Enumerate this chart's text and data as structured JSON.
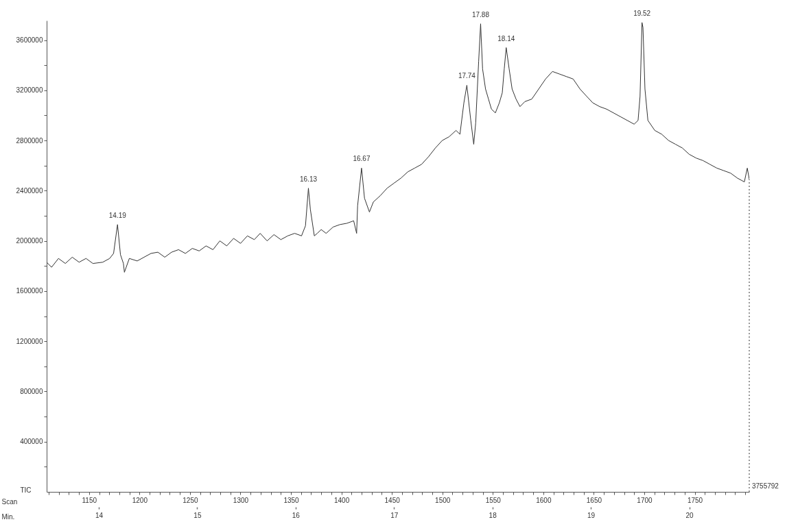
{
  "chart_data": {
    "type": "line",
    "xlabel": "Min.",
    "ylabel": "TIC",
    "x2label": "Scan",
    "xlim": [
      13.47,
      20.61
    ],
    "ylim": [
      0,
      3755792
    ],
    "x2lim": [
      1108,
      1804
    ],
    "xticks": [
      14,
      15,
      16,
      17,
      18,
      19,
      20
    ],
    "x2ticks": [
      {
        "value": 1110,
        "label": null
      },
      {
        "value": 1120,
        "label": null
      },
      {
        "value": 1130,
        "label": null
      },
      {
        "value": 1140,
        "label": null
      },
      1150,
      {
        "value": 1160,
        "label": null
      },
      {
        "value": 1170,
        "label": null
      },
      {
        "value": 1180,
        "label": null
      },
      {
        "value": 1190,
        "label": null
      },
      1200,
      {
        "value": 1210,
        "label": null
      },
      {
        "value": 1220,
        "label": null
      },
      {
        "value": 1230,
        "label": null
      },
      {
        "value": 1240,
        "label": null
      },
      1250,
      {
        "value": 1260,
        "label": null
      },
      {
        "value": 1270,
        "label": null
      },
      {
        "value": 1280,
        "label": null
      },
      {
        "value": 1290,
        "label": null
      },
      1300,
      {
        "value": 1310,
        "label": null
      },
      {
        "value": 1320,
        "label": null
      },
      {
        "value": 1330,
        "label": null
      },
      {
        "value": 1340,
        "label": null
      },
      1350,
      {
        "value": 1360,
        "label": null
      },
      {
        "value": 1370,
        "label": null
      },
      {
        "value": 1380,
        "label": null
      },
      {
        "value": 1390,
        "label": null
      },
      1400,
      {
        "value": 1410,
        "label": null
      },
      {
        "value": 1420,
        "label": null
      },
      {
        "value": 1430,
        "label": null
      },
      {
        "value": 1440,
        "label": null
      },
      1450,
      {
        "value": 1460,
        "label": null
      },
      {
        "value": 1470,
        "label": null
      },
      {
        "value": 1480,
        "label": null
      },
      {
        "value": 1490,
        "label": null
      },
      1500,
      {
        "value": 1510,
        "label": null
      },
      {
        "value": 1520,
        "label": null
      },
      {
        "value": 1530,
        "label": null
      },
      {
        "value": 1540,
        "label": null
      },
      1550,
      {
        "value": 1560,
        "label": null
      },
      {
        "value": 1570,
        "label": null
      },
      {
        "value": 1580,
        "label": null
      },
      {
        "value": 1590,
        "label": null
      },
      1600,
      {
        "value": 1610,
        "label": null
      },
      {
        "value": 1620,
        "label": null
      },
      {
        "value": 1630,
        "label": null
      },
      {
        "value": 1640,
        "label": null
      },
      1650,
      {
        "value": 1660,
        "label": null
      },
      {
        "value": 1670,
        "label": null
      },
      {
        "value": 1680,
        "label": null
      },
      {
        "value": 1690,
        "label": null
      },
      1700,
      {
        "value": 1710,
        "label": null
      },
      {
        "value": 1720,
        "label": null
      },
      {
        "value": 1730,
        "label": null
      },
      {
        "value": 1740,
        "label": null
      },
      1750,
      {
        "value": 1760,
        "label": null
      },
      {
        "value": 1770,
        "label": null
      },
      {
        "value": 1780,
        "label": null
      },
      {
        "value": 1790,
        "label": null
      },
      {
        "value": 1800,
        "label": null
      }
    ],
    "yticks": [
      {
        "value": 200000,
        "label": null
      },
      400000,
      {
        "value": 600000,
        "label": null
      },
      800000,
      {
        "value": 1000000,
        "label": null
      },
      1200000,
      {
        "value": 1400000,
        "label": null
      },
      1600000,
      {
        "value": 1800000,
        "label": null
      },
      2000000,
      {
        "value": 2200000,
        "label": null
      },
      2400000,
      {
        "value": 2600000,
        "label": null
      },
      2800000,
      {
        "value": 3000000,
        "label": null
      },
      3200000,
      {
        "value": 3400000,
        "label": null
      },
      3600000
    ],
    "grid": false,
    "marker": "none",
    "line_style": "solid",
    "series": [
      {
        "color": "#333333",
        "x": [
          13.47,
          13.52,
          13.59,
          13.66,
          13.73,
          13.8,
          13.87,
          13.94,
          14.04,
          14.11,
          14.15,
          14.19,
          14.22,
          14.25,
          14.26,
          14.31,
          14.39,
          14.46,
          14.53,
          14.6,
          14.67,
          14.74,
          14.81,
          14.88,
          14.95,
          15.02,
          15.09,
          15.16,
          15.23,
          15.3,
          15.37,
          15.44,
          15.51,
          15.58,
          15.64,
          15.71,
          15.78,
          15.85,
          15.92,
          15.99,
          16.06,
          16.1,
          16.13,
          16.15,
          16.19,
          16.22,
          16.26,
          16.31,
          16.38,
          16.45,
          16.52,
          16.59,
          16.62,
          16.63,
          16.67,
          16.7,
          16.75,
          16.79,
          16.86,
          16.93,
          17.0,
          17.07,
          17.14,
          17.21,
          17.28,
          17.35,
          17.42,
          17.49,
          17.56,
          17.63,
          17.67,
          17.71,
          17.74,
          17.78,
          17.81,
          17.83,
          17.86,
          17.88,
          17.9,
          17.93,
          17.96,
          17.99,
          18.03,
          18.07,
          18.1,
          18.12,
          18.14,
          18.17,
          18.2,
          18.24,
          18.28,
          18.33,
          18.4,
          18.47,
          18.54,
          18.61,
          18.68,
          18.75,
          18.82,
          18.89,
          18.96,
          19.02,
          19.09,
          19.16,
          19.23,
          19.3,
          19.37,
          19.44,
          19.48,
          19.5,
          19.52,
          19.53,
          19.55,
          19.58,
          19.65,
          19.72,
          19.79,
          19.86,
          19.93,
          20.0,
          20.07,
          20.14,
          20.21,
          20.28,
          20.35,
          20.42,
          20.49,
          20.56,
          20.59,
          20.61
        ],
        "values": [
          1830000,
          1790000,
          1860000,
          1820000,
          1870000,
          1830000,
          1860000,
          1820000,
          1830000,
          1860000,
          1900000,
          2130000,
          1890000,
          1820000,
          1750000,
          1860000,
          1840000,
          1870000,
          1900000,
          1910000,
          1870000,
          1910000,
          1930000,
          1900000,
          1940000,
          1920000,
          1960000,
          1930000,
          2000000,
          1960000,
          2020000,
          1980000,
          2040000,
          2010000,
          2060000,
          2000000,
          2050000,
          2010000,
          2040000,
          2060000,
          2040000,
          2120000,
          2420000,
          2250000,
          2040000,
          2060000,
          2090000,
          2060000,
          2110000,
          2130000,
          2140000,
          2160000,
          2060000,
          2280000,
          2580000,
          2340000,
          2230000,
          2310000,
          2360000,
          2420000,
          2460000,
          2500000,
          2550000,
          2580000,
          2610000,
          2670000,
          2740000,
          2800000,
          2830000,
          2880000,
          2850000,
          3100000,
          3240000,
          2960000,
          2770000,
          2940000,
          3430000,
          3730000,
          3370000,
          3210000,
          3130000,
          3050000,
          3020000,
          3100000,
          3180000,
          3370000,
          3540000,
          3370000,
          3210000,
          3130000,
          3070000,
          3110000,
          3130000,
          3210000,
          3290000,
          3350000,
          3330000,
          3310000,
          3290000,
          3210000,
          3150000,
          3100000,
          3070000,
          3050000,
          3020000,
          2990000,
          2960000,
          2930000,
          2960000,
          3150000,
          3740000,
          3700000,
          3210000,
          2960000,
          2880000,
          2850000,
          2800000,
          2770000,
          2740000,
          2690000,
          2660000,
          2640000,
          2610000,
          2580000,
          2560000,
          2540000,
          2500000,
          2470000,
          2580000,
          2490000
        ]
      }
    ],
    "ref_lines": [
      {
        "axis": "x",
        "value": 20.61,
        "line_style": "dotted",
        "color": "#333333"
      }
    ],
    "annotations": [
      {
        "text": "14.19",
        "x": 14.19,
        "y": 2130000
      },
      {
        "text": "16.13",
        "x": 16.13,
        "y": 2420000
      },
      {
        "text": "16.67",
        "x": 16.67,
        "y": 2580000
      },
      {
        "text": "17.74",
        "x": 17.74,
        "y": 3240000
      },
      {
        "text": "17.88",
        "x": 17.88,
        "y": 3730000
      },
      {
        "text": "18.14",
        "x": 18.14,
        "y": 3540000
      },
      {
        "text": "19.52",
        "x": 19.52,
        "y": 3740000
      },
      "3755792"
    ]
  }
}
